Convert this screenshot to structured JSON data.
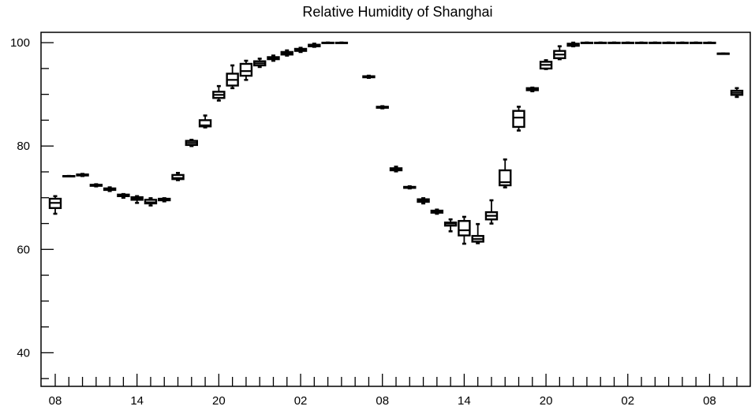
{
  "chart_data": {
    "type": "box",
    "title": "Relative Humidity of Shanghai",
    "xlabel": "",
    "ylabel": "",
    "ylim": [
      33.5,
      102
    ],
    "y_ticks": [
      40,
      60,
      80,
      100
    ],
    "x_tick_labels": [
      "08",
      "14",
      "20",
      "02",
      "08",
      "14",
      "20",
      "02",
      "08"
    ],
    "grid": false,
    "boxes": [
      {
        "min": 66.9,
        "q1": 68.0,
        "median": 69.0,
        "q3": 69.8,
        "max": 70.3
      },
      {
        "min": 74.2,
        "q1": 74.2,
        "median": 74.2,
        "q3": 74.2,
        "max": 74.2
      },
      {
        "min": 74.2,
        "q1": 74.3,
        "median": 74.4,
        "q3": 74.5,
        "max": 74.6
      },
      {
        "min": 72.2,
        "q1": 72.3,
        "median": 72.4,
        "q3": 72.5,
        "max": 72.6
      },
      {
        "min": 71.3,
        "q1": 71.5,
        "median": 71.6,
        "q3": 71.8,
        "max": 72.0
      },
      {
        "min": 70.0,
        "q1": 70.3,
        "median": 70.5,
        "q3": 70.6,
        "max": 70.7
      },
      {
        "min": 69.0,
        "q1": 69.6,
        "median": 69.8,
        "q3": 70.1,
        "max": 70.3
      },
      {
        "min": 68.5,
        "q1": 68.9,
        "median": 69.1,
        "q3": 69.6,
        "max": 69.9
      },
      {
        "min": 69.3,
        "q1": 69.5,
        "median": 69.6,
        "q3": 69.8,
        "max": 69.9
      },
      {
        "min": 73.4,
        "q1": 73.6,
        "median": 73.8,
        "q3": 74.4,
        "max": 74.8
      },
      {
        "min": 80.0,
        "q1": 80.2,
        "median": 80.6,
        "q3": 81.0,
        "max": 81.2
      },
      {
        "min": 83.6,
        "q1": 83.8,
        "median": 84.0,
        "q3": 85.0,
        "max": 85.9
      },
      {
        "min": 88.8,
        "q1": 89.3,
        "median": 89.9,
        "q3": 90.5,
        "max": 91.6
      },
      {
        "min": 91.2,
        "q1": 91.7,
        "median": 92.8,
        "q3": 94.0,
        "max": 95.6
      },
      {
        "min": 92.8,
        "q1": 93.6,
        "median": 94.5,
        "q3": 95.9,
        "max": 96.5
      },
      {
        "min": 95.3,
        "q1": 95.6,
        "median": 96.0,
        "q3": 96.4,
        "max": 96.9
      },
      {
        "min": 96.5,
        "q1": 96.8,
        "median": 97.0,
        "q3": 97.2,
        "max": 97.5
      },
      {
        "min": 97.5,
        "q1": 97.7,
        "median": 98.0,
        "q3": 98.2,
        "max": 98.5
      },
      {
        "min": 98.2,
        "q1": 98.4,
        "median": 98.6,
        "q3": 98.8,
        "max": 99.0
      },
      {
        "min": 99.2,
        "q1": 99.3,
        "median": 99.5,
        "q3": 99.6,
        "max": 99.8
      },
      {
        "min": 100.0,
        "q1": 100.0,
        "median": 100.0,
        "q3": 100.0,
        "max": 100.0
      },
      {
        "min": 100.0,
        "q1": 100.0,
        "median": 100.0,
        "q3": 100.0,
        "max": 100.0
      },
      null,
      {
        "min": 93.2,
        "q1": 93.3,
        "median": 93.4,
        "q3": 93.5,
        "max": 93.6
      },
      {
        "min": 87.3,
        "q1": 87.4,
        "median": 87.5,
        "q3": 87.6,
        "max": 87.7
      },
      {
        "min": 75.1,
        "q1": 75.3,
        "median": 75.5,
        "q3": 75.7,
        "max": 76.0
      },
      {
        "min": 71.8,
        "q1": 71.9,
        "median": 72.0,
        "q3": 72.1,
        "max": 72.2
      },
      {
        "min": 68.9,
        "q1": 69.2,
        "median": 69.5,
        "q3": 69.7,
        "max": 69.9
      },
      {
        "min": 66.9,
        "q1": 67.1,
        "median": 67.3,
        "q3": 67.5,
        "max": 67.7
      },
      {
        "min": 63.5,
        "q1": 64.6,
        "median": 65.0,
        "q3": 65.2,
        "max": 65.8
      },
      {
        "min": 61.1,
        "q1": 62.7,
        "median": 63.7,
        "q3": 65.5,
        "max": 66.3
      },
      {
        "min": 61.2,
        "q1": 61.5,
        "median": 62.0,
        "q3": 62.6,
        "max": 64.9
      },
      {
        "min": 65.0,
        "q1": 65.8,
        "median": 66.5,
        "q3": 67.2,
        "max": 69.5
      },
      {
        "min": 72.0,
        "q1": 72.4,
        "median": 73.0,
        "q3": 75.3,
        "max": 77.4
      },
      {
        "min": 83.0,
        "q1": 83.7,
        "median": 85.5,
        "q3": 86.8,
        "max": 87.6
      },
      {
        "min": 90.6,
        "q1": 90.8,
        "median": 91.0,
        "q3": 91.2,
        "max": 91.3
      },
      {
        "min": 94.9,
        "q1": 95.0,
        "median": 95.7,
        "q3": 96.3,
        "max": 96.6
      },
      {
        "min": 96.8,
        "q1": 97.0,
        "median": 97.7,
        "q3": 98.4,
        "max": 99.3
      },
      {
        "min": 99.3,
        "q1": 99.4,
        "median": 99.6,
        "q3": 99.8,
        "max": 100.0
      },
      {
        "min": 100.0,
        "q1": 100.0,
        "median": 100.0,
        "q3": 100.0,
        "max": 100.0
      },
      {
        "min": 100.0,
        "q1": 100.0,
        "median": 100.0,
        "q3": 100.0,
        "max": 100.0
      },
      {
        "min": 100.0,
        "q1": 100.0,
        "median": 100.0,
        "q3": 100.0,
        "max": 100.0
      },
      {
        "min": 100.0,
        "q1": 100.0,
        "median": 100.0,
        "q3": 100.0,
        "max": 100.0
      },
      {
        "min": 100.0,
        "q1": 100.0,
        "median": 100.0,
        "q3": 100.0,
        "max": 100.0
      },
      {
        "min": 100.0,
        "q1": 100.0,
        "median": 100.0,
        "q3": 100.0,
        "max": 100.0
      },
      {
        "min": 100.0,
        "q1": 100.0,
        "median": 100.0,
        "q3": 100.0,
        "max": 100.0
      },
      {
        "min": 100.0,
        "q1": 100.0,
        "median": 100.0,
        "q3": 100.0,
        "max": 100.0
      },
      {
        "min": 100.0,
        "q1": 100.0,
        "median": 100.0,
        "q3": 100.0,
        "max": 100.0
      },
      {
        "min": 100.0,
        "q1": 100.0,
        "median": 100.0,
        "q3": 100.0,
        "max": 100.0
      },
      {
        "min": 97.9,
        "q1": 97.9,
        "median": 97.9,
        "q3": 97.9,
        "max": 97.9
      },
      {
        "min": 89.5,
        "q1": 89.9,
        "median": 90.3,
        "q3": 90.7,
        "max": 91.2
      }
    ]
  }
}
